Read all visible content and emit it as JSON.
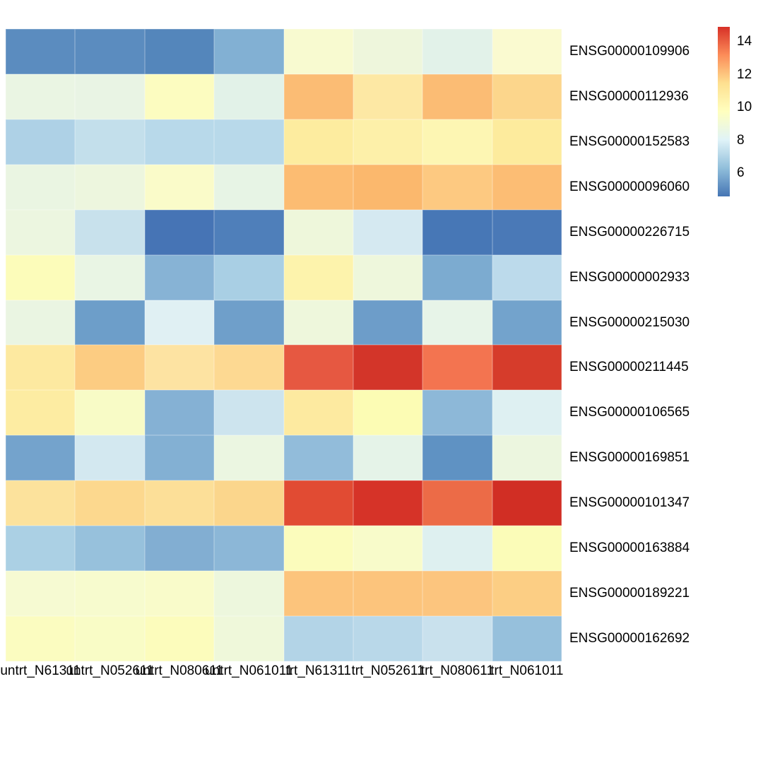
{
  "figure": {
    "kind": "expression-heatmap",
    "background_color": "#ffffff"
  },
  "chart_data": {
    "type": "heatmap",
    "title": "",
    "xlabel": "",
    "ylabel": "",
    "rows": [
      "ENSG00000109906",
      "ENSG00000112936",
      "ENSG00000152583",
      "ENSG00000096060",
      "ENSG00000226715",
      "ENSG00000002933",
      "ENSG00000215030",
      "ENSG00000211445",
      "ENSG00000106565",
      "ENSG00000169851",
      "ENSG00000101347",
      "ENSG00000163884",
      "ENSG00000189221",
      "ENSG00000162692"
    ],
    "columns": [
      "untrt_N61311",
      "untrt_N052611",
      "untrt_N080611",
      "untrt_N061011",
      "trt_N61311",
      "trt_N052611",
      "trt_N080611",
      "trt_N061011"
    ],
    "values": [
      [
        5.6,
        5.6,
        5.5,
        6.1,
        9.5,
        9.0,
        8.5,
        9.5
      ],
      [
        8.8,
        8.8,
        9.9,
        8.5,
        12.6,
        11.4,
        12.6,
        12.0
      ],
      [
        6.9,
        7.3,
        7.1,
        7.1,
        11.2,
        11.0,
        10.6,
        11.3
      ],
      [
        8.8,
        9.0,
        9.8,
        8.7,
        12.7,
        12.8,
        12.3,
        12.6
      ],
      [
        8.9,
        7.4,
        4.6,
        5.0,
        9.0,
        7.7,
        4.7,
        4.8
      ],
      [
        10.0,
        8.8,
        6.2,
        6.8,
        10.9,
        9.0,
        6.0,
        7.2
      ],
      [
        8.8,
        5.7,
        8.1,
        5.8,
        9.0,
        5.7,
        8.7,
        5.9
      ],
      [
        11.3,
        12.2,
        11.5,
        11.9,
        14.5,
        15.1,
        13.9,
        15.0
      ],
      [
        11.2,
        9.8,
        6.1,
        7.5,
        11.3,
        10.1,
        6.3,
        8.0
      ],
      [
        5.9,
        7.7,
        6.1,
        8.9,
        6.4,
        8.6,
        5.4,
        8.9
      ],
      [
        11.6,
        11.9,
        11.7,
        12.0,
        14.8,
        15.1,
        14.1,
        15.2
      ],
      [
        6.8,
        6.5,
        6.1,
        6.3,
        10.0,
        9.8,
        8.0,
        10.0
      ],
      [
        9.5,
        9.6,
        9.7,
        9.0,
        12.4,
        12.4,
        12.4,
        12.1
      ],
      [
        9.9,
        9.8,
        10.0,
        9.1,
        7.0,
        7.1,
        7.4,
        6.5
      ]
    ],
    "cell_colors": [
      [
        "#5b8cbf",
        "#5b8cbf",
        "#5486bb",
        "#82b0d3",
        "#f8fad0",
        "#eef6dc",
        "#e2f2e9",
        "#fafad0"
      ],
      [
        "#eaf5e3",
        "#e9f4e4",
        "#fcfcc0",
        "#e2f2e8",
        "#fbbc74",
        "#fde8a4",
        "#fbbc74",
        "#fcd68c"
      ],
      [
        "#aed1e6",
        "#c3dfeb",
        "#b8d9ea",
        "#b8d9ea",
        "#fdec9f",
        "#fdf0a9",
        "#fdf6b3",
        "#fdeb9d"
      ],
      [
        "#eaf5e2",
        "#edf6de",
        "#fafbc9",
        "#e7f4e5",
        "#fcbc72",
        "#fbb86d",
        "#fdc981",
        "#fcbd74"
      ],
      [
        "#ecf6e0",
        "#c8e1ec",
        "#4674b5",
        "#4f7fba",
        "#eef7db",
        "#d5e9f1",
        "#4777b6",
        "#4a79b7"
      ],
      [
        "#fcfcba",
        "#e9f5e4",
        "#87b3d5",
        "#a9cfe4",
        "#fdf3ac",
        "#eef7dc",
        "#7cabd0",
        "#bcdaeb"
      ],
      [
        "#eaf5e2",
        "#6d9ec9",
        "#e0f0f3",
        "#6f9fca",
        "#eef7dc",
        "#6d9dc9",
        "#e7f4e8",
        "#73a3cc"
      ],
      [
        "#fde9a0",
        "#fccc82",
        "#fde3a2",
        "#fdd992",
        "#e65841",
        "#d33529",
        "#f37450",
        "#d63c2b"
      ],
      [
        "#fdeca2",
        "#f8fbc6",
        "#85b1d4",
        "#cde4ee",
        "#fdeaa0",
        "#fcfcb4",
        "#8db8d8",
        "#def0f2"
      ],
      [
        "#74a3cc",
        "#d3e8f0",
        "#83b0d3",
        "#ebf6e1",
        "#92bcda",
        "#e5f3e8",
        "#5f92c3",
        "#ecf6df"
      ],
      [
        "#fce29c",
        "#fcd88e",
        "#fcdf98",
        "#fbd68c",
        "#e14b33",
        "#d63328",
        "#ec6b47",
        "#d12e24"
      ],
      [
        "#abd0e4",
        "#97c1dc",
        "#82aed2",
        "#8cb7d7",
        "#fbfcbc",
        "#f8fbca",
        "#def0f0",
        "#fbfcb8"
      ],
      [
        "#f6fad2",
        "#f7fbce",
        "#f9fbca",
        "#edf7dd",
        "#fcc47c",
        "#fcc47c",
        "#fcc57e",
        "#fcce84"
      ],
      [
        "#fbfcc0",
        "#f9fcc6",
        "#fcfcbc",
        "#eff8da",
        "#b3d4e7",
        "#b9d8e9",
        "#c9e1ed",
        "#96c0dc"
      ]
    ],
    "legend": {
      "position": "right",
      "orientation": "vertical",
      "domain_min": 4.6,
      "domain_max": 14.9,
      "ticks": [
        14,
        12,
        10,
        8,
        6
      ],
      "tick_labels": [
        "14",
        "12",
        "10",
        "8",
        "6"
      ],
      "gradient_colors_low_to_high": [
        "#4575b4",
        "#91bfdb",
        "#e0f3f8",
        "#ffffbf",
        "#fee090",
        "#fc8d59",
        "#d73027"
      ]
    },
    "grid": false
  }
}
